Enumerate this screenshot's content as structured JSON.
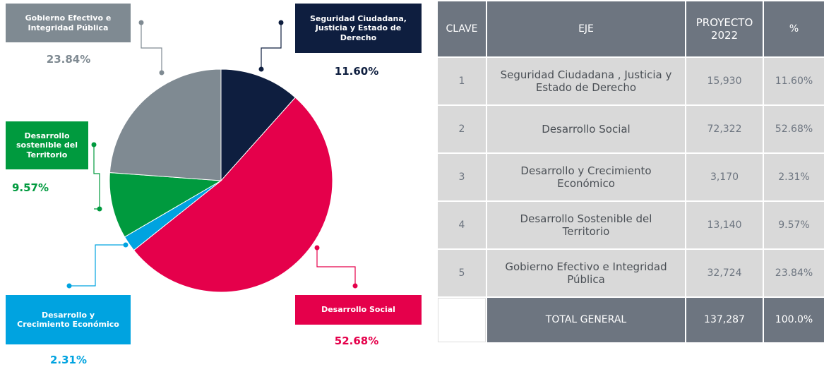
{
  "chart_data": {
    "type": "pie",
    "categories": [
      "Seguridad Ciudadana, Justicia y Estado de Derecho",
      "Desarrollo Social",
      "Desarrollo y Crecimiento Económico",
      "Desarrollo sostenible del Territorio",
      "Gobierno Efectivo e Integridad Pública"
    ],
    "values": [
      11.6,
      52.68,
      2.31,
      9.57,
      23.84
    ],
    "value_labels": [
      "11.60%",
      "52.68%",
      "2.31%",
      "9.57%",
      "23.84%"
    ],
    "colors": [
      "#0e1e3f",
      "#e5004b",
      "#00a3e0",
      "#009a3e",
      "#7f8a92"
    ]
  },
  "table": {
    "header": [
      "CLAVE",
      "EJE",
      "PROYECTO 2022",
      "%"
    ],
    "rows": [
      [
        "1",
        "Seguridad Ciudadana , Justicia y Estado de Derecho",
        "15,930",
        "11.60%"
      ],
      [
        "2",
        "Desarrollo Social",
        "72,322",
        "52.68%"
      ],
      [
        "3",
        "Desarrollo y Crecimiento Económico",
        "3,170",
        "2.31%"
      ],
      [
        "4",
        "Desarrollo Sostenible del Territorio",
        "13,140",
        "9.57%"
      ],
      [
        "5",
        "Gobierno Efectivo e Integridad Pública",
        "32,724",
        "23.84%"
      ]
    ],
    "total": {
      "label": "TOTAL GENERAL",
      "amount": "137,287",
      "percent": "100.0%"
    }
  }
}
